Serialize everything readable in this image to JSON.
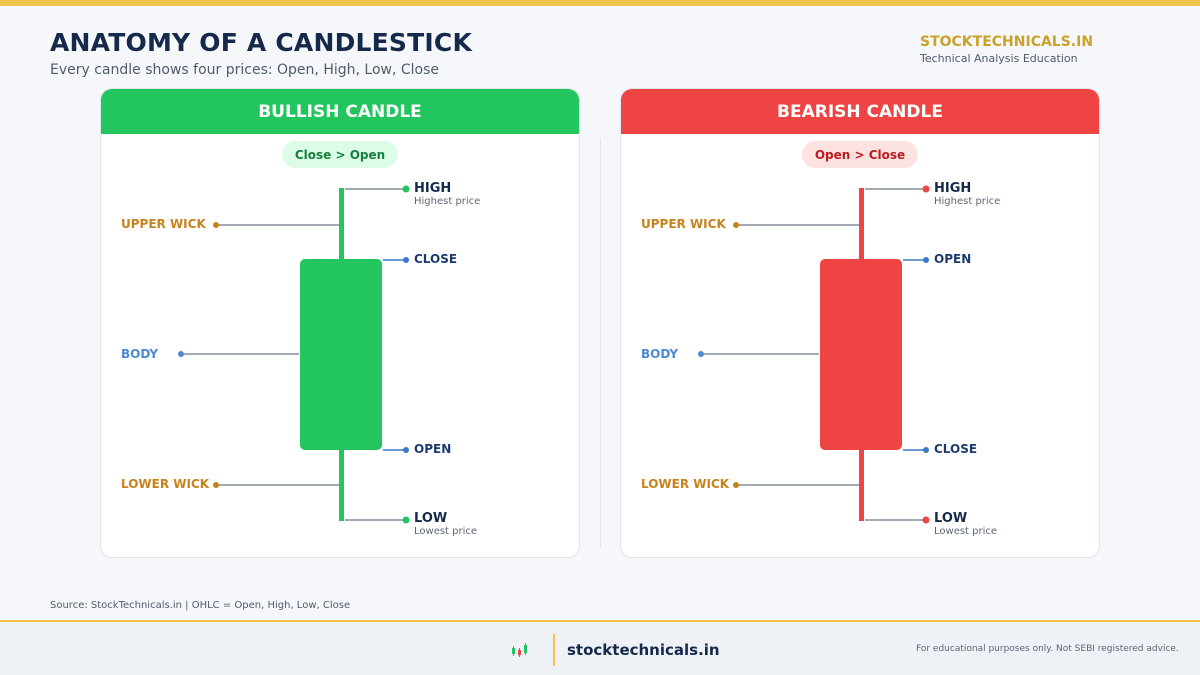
{
  "header": {
    "title": "ANATOMY OF A CANDLESTICK",
    "subtitle": "Every candle shows four prices: Open, High, Low, Close",
    "brand": "STOCKTECHNICALS.IN",
    "tagline": "Technical Analysis Education"
  },
  "bullish": {
    "heading": "BULLISH CANDLE",
    "rule": "Close > Open",
    "color": "#22c55e",
    "pill_bg": "#dcfce7",
    "pill_text": "#15803d",
    "labels": {
      "high": "HIGH",
      "high_sub": "Highest price",
      "upper_wick": "UPPER WICK",
      "top_price": "CLOSE",
      "body": "BODY",
      "bottom_price": "OPEN",
      "lower_wick": "LOWER WICK",
      "low": "LOW",
      "low_sub": "Lowest price"
    }
  },
  "bearish": {
    "heading": "BEARISH CANDLE",
    "rule": "Open > Close",
    "color": "#ef4444",
    "pill_bg": "#fde2e2",
    "pill_text": "#b91c1c",
    "labels": {
      "high": "HIGH",
      "high_sub": "Highest price",
      "upper_wick": "UPPER WICK",
      "top_price": "OPEN",
      "body": "BODY",
      "bottom_price": "CLOSE",
      "lower_wick": "LOWER WICK",
      "low": "LOW",
      "low_sub": "Lowest price"
    }
  },
  "footer": {
    "source": "Source: StockTechnicals.in | OHLC = Open, High, Low, Close",
    "site": "stocktechnicals.in",
    "disclaimer": "For educational purposes only. Not SEBI registered advice.",
    "logo_icon": "candlestick-logo-icon"
  },
  "colors": {
    "accent": "#f2c14e",
    "navy": "#15294a",
    "wick_label": "#c7821c",
    "body_label": "#4a8ad1",
    "price_dot": "#3a78c9"
  }
}
